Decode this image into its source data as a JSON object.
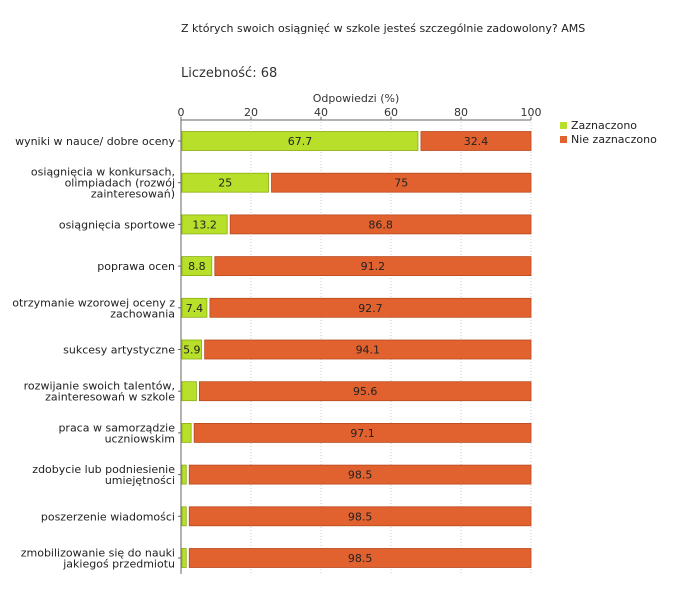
{
  "title": "Z których swoich osiągnięć w szkole jesteś szczególnie zadowolony? AMS",
  "count_label": "Liczebność:",
  "count_value": "68",
  "colors": {
    "selected": "#b8df2a",
    "not_selected": "#e2622f",
    "grid": "#cccccc",
    "axis": "#666666"
  },
  "chart_data": {
    "type": "bar",
    "orientation": "horizontal",
    "stacked": true,
    "xlabel": "Odpowiedzi (%)",
    "xlim": [
      0,
      100
    ],
    "xticks": [
      0,
      20,
      40,
      60,
      80,
      100
    ],
    "grid": true,
    "legend_position": "top-right",
    "categories": [
      [
        "wyniki w nauce/ dobre oceny"
      ],
      [
        "osiągnięcia w konkursach,",
        "olimpiadach (rozwój",
        "zainteresowań)"
      ],
      [
        "osiągnięcia sportowe"
      ],
      [
        "poprawa ocen"
      ],
      [
        "otrzymanie wzorowej oceny z",
        "zachowania"
      ],
      [
        "sukcesy artystyczne"
      ],
      [
        "rozwijanie swoich talentów,",
        "zainteresowań w szkole"
      ],
      [
        "praca w samorządzie",
        "uczniowskim"
      ],
      [
        "zdobycie lub podniesienie",
        "umiejętności"
      ],
      [
        "poszerzenie wiadomości"
      ],
      [
        "zmobilizowanie się do nauki",
        "jakiegoś przedmiotu"
      ]
    ],
    "series": [
      {
        "name": "Zaznaczono",
        "values": [
          67.7,
          25,
          13.2,
          8.8,
          7.4,
          5.9,
          4.4,
          2.9,
          1.5,
          1.5,
          1.5
        ],
        "labels": [
          "67.7",
          "25",
          "13.2",
          "8.8",
          "7.4",
          "5.9",
          "",
          "",
          "",
          "",
          ""
        ]
      },
      {
        "name": "Nie zaznaczono",
        "values": [
          32.4,
          75,
          86.8,
          91.2,
          92.7,
          94.1,
          95.6,
          97.1,
          98.5,
          98.5,
          98.5
        ],
        "labels": [
          "32.4",
          "75",
          "86.8",
          "91.2",
          "92.7",
          "94.1",
          "95.6",
          "97.1",
          "98.5",
          "98.5",
          "98.5"
        ]
      }
    ]
  }
}
